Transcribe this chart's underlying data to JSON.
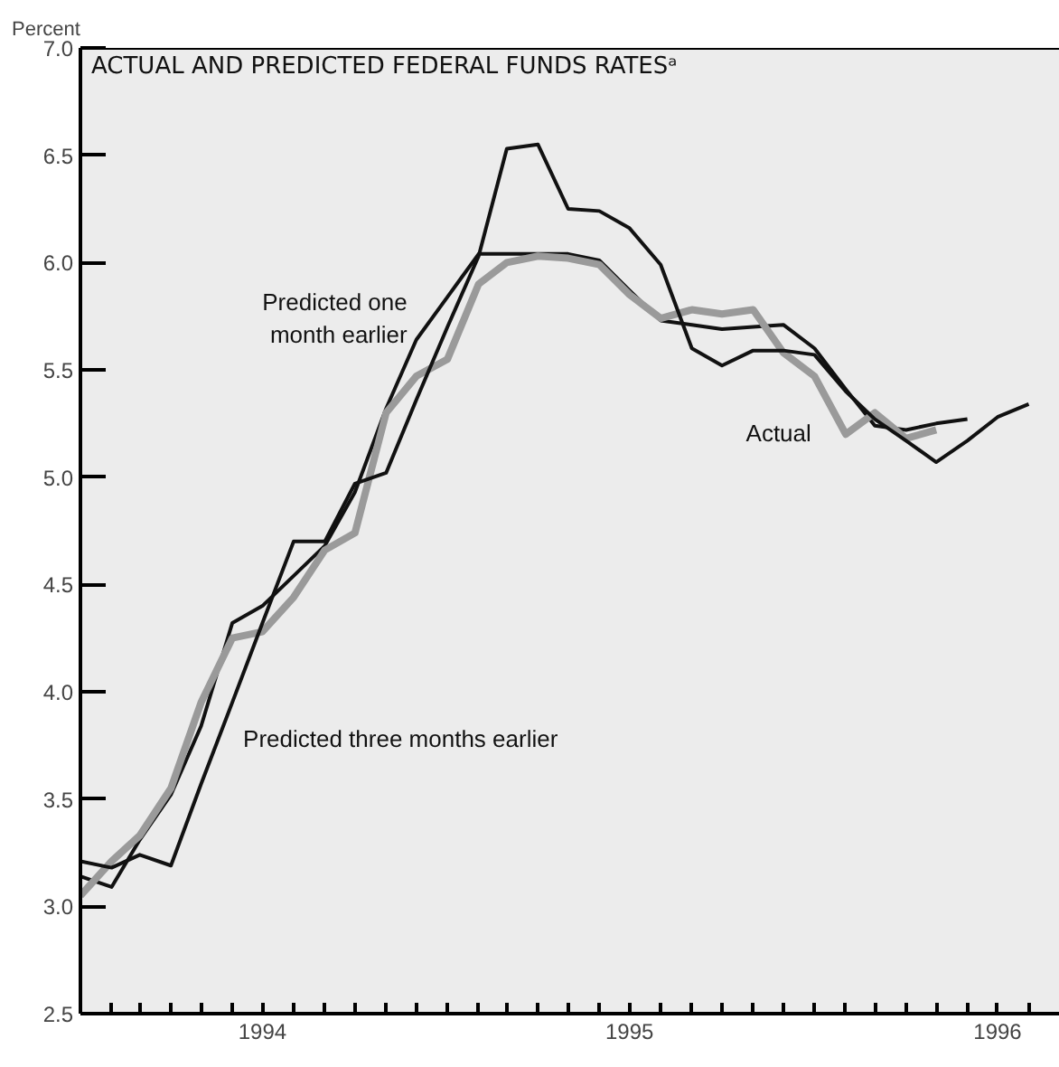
{
  "chart_data": {
    "type": "line",
    "title": "ACTUAL AND PREDICTED FEDERAL FUNDS RATESᵃ",
    "ylabel": "Percent",
    "x": [
      "1994-01",
      "1994-02",
      "1994-03",
      "1994-04",
      "1994-05",
      "1994-06",
      "1994-07",
      "1994-08",
      "1994-09",
      "1994-10",
      "1994-11",
      "1994-12",
      "1995-01",
      "1995-02",
      "1995-03",
      "1995-04",
      "1995-05",
      "1995-06",
      "1995-07",
      "1995-08",
      "1995-09",
      "1995-10",
      "1995-11",
      "1995-12",
      "1996-01",
      "1996-02",
      "1996-03",
      "1996-04",
      "1996-05",
      "1996-06",
      "1996-07",
      "1996-08"
    ],
    "series": [
      {
        "name": "Predicted one month earlier",
        "color": "#111111",
        "values": [
          3.14,
          3.09,
          3.31,
          3.52,
          3.84,
          4.32,
          4.4,
          4.54,
          4.68,
          4.93,
          5.32,
          5.64,
          5.84,
          6.04,
          6.04,
          6.04,
          6.04,
          6.01,
          5.87,
          5.73,
          5.71,
          5.69,
          5.7,
          5.71,
          5.6,
          5.41,
          5.24,
          5.22,
          5.25,
          5.27,
          null,
          null
        ]
      },
      {
        "name": "Actual",
        "color": "#9a9a9a",
        "values": [
          3.05,
          3.21,
          3.33,
          3.55,
          3.95,
          4.25,
          4.28,
          4.44,
          4.66,
          4.74,
          5.3,
          5.47,
          5.55,
          5.9,
          6.0,
          6.03,
          6.02,
          5.99,
          5.85,
          5.74,
          5.78,
          5.76,
          5.78,
          5.58,
          5.47,
          5.2,
          5.3,
          5.18,
          5.22,
          null,
          null,
          null
        ]
      },
      {
        "name": "Predicted three months earlier",
        "color": "#111111",
        "values": [
          3.21,
          3.18,
          3.24,
          3.19,
          3.57,
          3.95,
          4.32,
          4.7,
          4.7,
          4.97,
          5.02,
          5.36,
          5.7,
          6.03,
          6.53,
          6.55,
          6.25,
          6.24,
          6.16,
          5.99,
          5.6,
          5.52,
          5.59,
          5.59,
          5.57,
          5.4,
          5.27,
          5.17,
          5.07,
          5.17,
          5.28,
          5.34
        ]
      }
    ],
    "xlim": [
      "1994-01",
      "1996-09"
    ],
    "xticks": [
      {
        "value": "1994-01",
        "label": null
      },
      {
        "value": "1994-02",
        "label": null
      },
      {
        "value": "1994-03",
        "label": null
      },
      {
        "value": "1994-04",
        "label": null
      },
      {
        "value": "1994-05",
        "label": null
      },
      {
        "value": "1994-06",
        "label": null
      },
      {
        "value": "1994-07",
        "label": "1994"
      },
      {
        "value": "1994-08",
        "label": null
      },
      {
        "value": "1994-09",
        "label": null
      },
      {
        "value": "1994-10",
        "label": null
      },
      {
        "value": "1994-11",
        "label": null
      },
      {
        "value": "1994-12",
        "label": null
      },
      {
        "value": "1995-01",
        "label": null
      },
      {
        "value": "1995-02",
        "label": null
      },
      {
        "value": "1995-03",
        "label": null
      },
      {
        "value": "1995-04",
        "label": null
      },
      {
        "value": "1995-05",
        "label": null
      },
      {
        "value": "1995-06",
        "label": null
      },
      {
        "value": "1995-07",
        "label": "1995"
      },
      {
        "value": "1995-08",
        "label": null
      },
      {
        "value": "1995-09",
        "label": null
      },
      {
        "value": "1995-10",
        "label": null
      },
      {
        "value": "1995-11",
        "label": null
      },
      {
        "value": "1995-12",
        "label": null
      },
      {
        "value": "1996-01",
        "label": null
      },
      {
        "value": "1996-02",
        "label": null
      },
      {
        "value": "1996-03",
        "label": null
      },
      {
        "value": "1996-04",
        "label": null
      },
      {
        "value": "1996-05",
        "label": null
      },
      {
        "value": "1996-06",
        "label": null
      },
      {
        "value": "1996-07",
        "label": "1996"
      },
      {
        "value": "1996-08",
        "label": null
      }
    ],
    "ylim": [
      2.5,
      7.0
    ],
    "yticks": [
      {
        "value": 2.5,
        "label": "2.5"
      },
      {
        "value": 3.0,
        "label": "3.0"
      },
      {
        "value": 3.5,
        "label": "3.5"
      },
      {
        "value": 4.0,
        "label": "4.0"
      },
      {
        "value": 4.5,
        "label": "4.5"
      },
      {
        "value": 5.0,
        "label": "5.0"
      },
      {
        "value": 5.5,
        "label": "5.5"
      },
      {
        "value": 6.0,
        "label": "6.0"
      },
      {
        "value": 6.5,
        "label": "6.5"
      },
      {
        "value": 7.0,
        "label": "7.0"
      }
    ],
    "grid": false,
    "legend": false
  }
}
